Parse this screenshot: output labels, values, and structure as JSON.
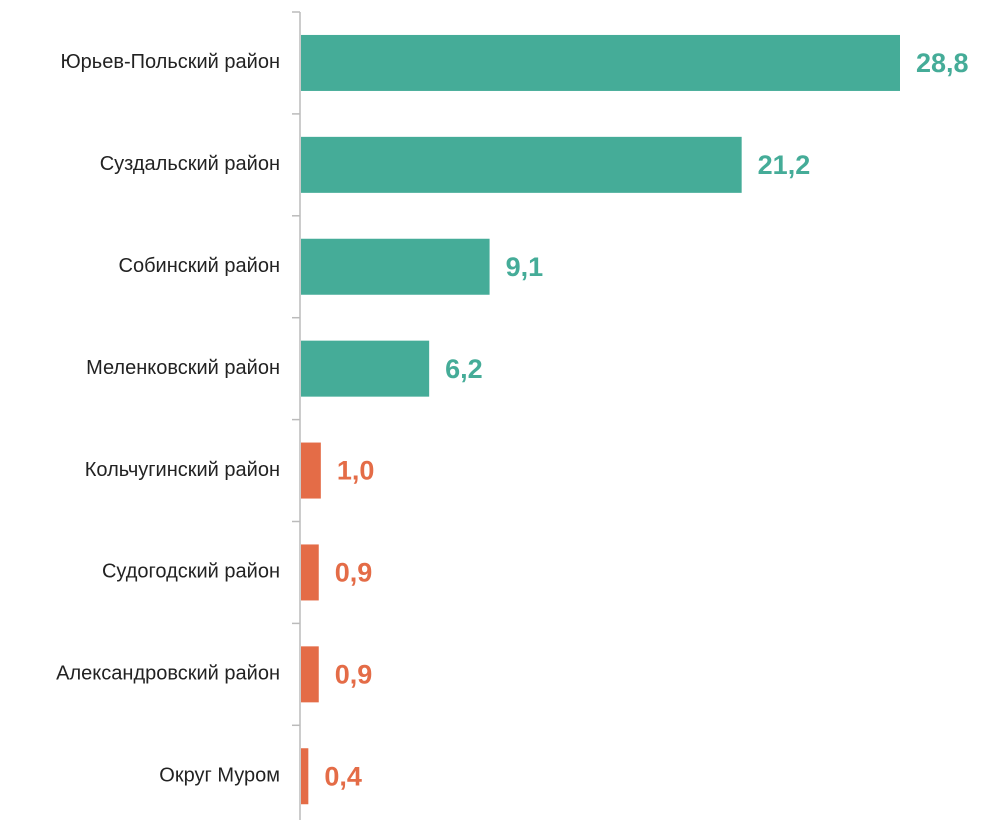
{
  "chart_data": {
    "type": "bar",
    "orientation": "horizontal",
    "categories": [
      "Юрьев-Польский район",
      "Суздальский район",
      "Собинский район",
      "Меленковский район",
      "Кольчугинский район",
      "Судогодский район",
      "Александровский район",
      "Округ Муром"
    ],
    "values": [
      28.8,
      21.2,
      9.1,
      6.2,
      1.0,
      0.9,
      0.9,
      0.4
    ],
    "value_labels": [
      "28,8",
      "21,2",
      "9,1",
      "6,2",
      "1,0",
      "0,9",
      "0,9",
      "0,4"
    ],
    "colors": [
      "#45ac98",
      "#45ac98",
      "#45ac98",
      "#45ac98",
      "#e46c47",
      "#e46c47",
      "#e46c47",
      "#e46c47"
    ]
  }
}
